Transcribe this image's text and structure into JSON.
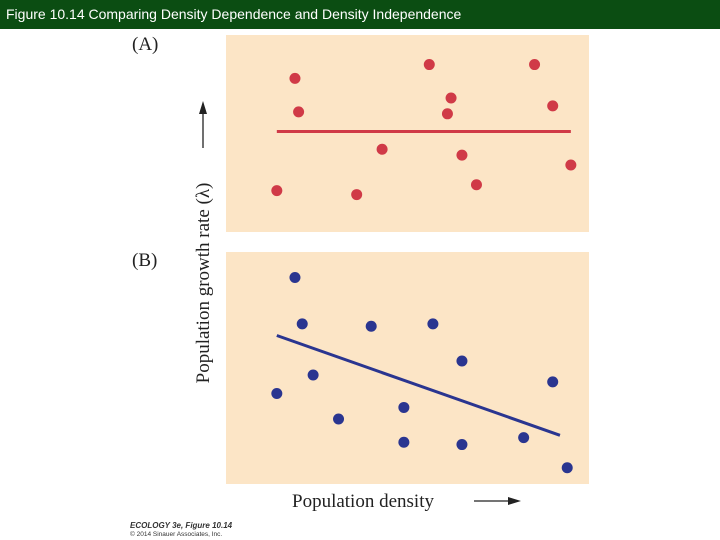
{
  "header": {
    "title": "Figure 10.14 Comparing Density Dependence and Density Independence"
  },
  "colors": {
    "title_bar": "#0b4d12",
    "panel_bg": "#fce5c6",
    "red": "#d03a47",
    "blue": "#2a3590"
  },
  "shared": {
    "ylabel": "Population growth rate (λ)",
    "xlabel": "Population density"
  },
  "credit": {
    "line1": "ECOLOGY 3e, Figure 10.14",
    "line2": "© 2014 Sinauer Associates, Inc."
  },
  "chart_data": [
    {
      "type": "scatter",
      "panel_label": "(A)",
      "xlim": [
        0,
        100
      ],
      "ylim": [
        0,
        100
      ],
      "x": [
        14,
        19,
        20,
        36,
        43,
        56,
        61,
        62,
        65,
        69,
        85,
        90,
        95
      ],
      "y": [
        21,
        78,
        61,
        19,
        42,
        85,
        60,
        68,
        39,
        24,
        85,
        64,
        34
      ],
      "trend": {
        "x": [
          14,
          95
        ],
        "y": [
          51,
          51
        ]
      }
    },
    {
      "type": "scatter",
      "panel_label": "(B)",
      "xlim": [
        0,
        100
      ],
      "ylim": [
        0,
        100
      ],
      "x": [
        14,
        19,
        21,
        24,
        31,
        40,
        49,
        49,
        57,
        65,
        65,
        82,
        90,
        94
      ],
      "y": [
        39,
        89,
        69,
        47,
        28,
        68,
        33,
        18,
        69,
        53,
        17,
        20,
        44,
        7
      ],
      "trend": {
        "x": [
          14,
          92
        ],
        "y": [
          64,
          21
        ]
      }
    }
  ]
}
